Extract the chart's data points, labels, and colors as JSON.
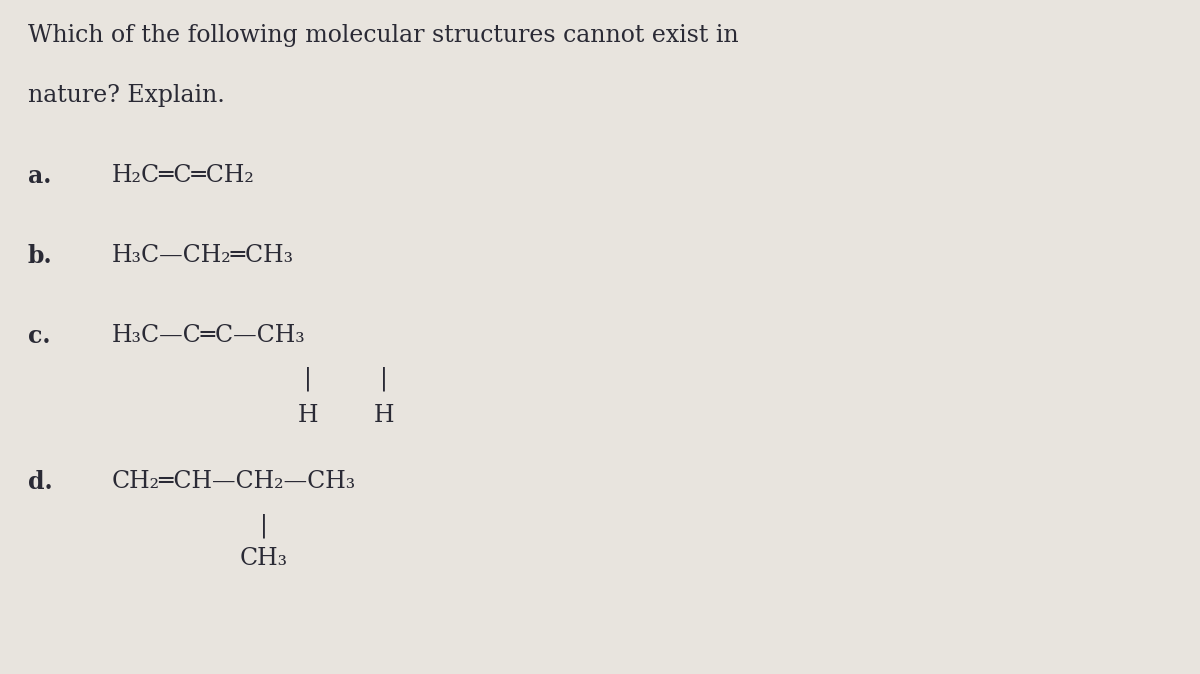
{
  "background_color": "#e8e4de",
  "text_color": "#2a2a35",
  "title_line1": "Which of the following molecular structures cannot exist in",
  "title_line2": "nature? Explain.",
  "title_fontsize": 19,
  "label_fontsize": 19,
  "formula_fontsize": 19,
  "figsize": [
    12.0,
    6.74
  ],
  "dpi": 100,
  "items": [
    {
      "label": "a.",
      "main": "H₂C═C═CH₂",
      "sub_bars": [],
      "sub_atoms": [],
      "branch_bar": null,
      "branch_atom": null
    },
    {
      "label": "b.",
      "main": "H₃C—CH₂═CH₃",
      "sub_bars": [],
      "sub_atoms": [],
      "branch_bar": null,
      "branch_atom": null
    },
    {
      "label": "c.",
      "main": "H₃C—C═C—CH₃",
      "sub_bars": [
        0.37,
        0.51
      ],
      "sub_atoms": [
        "H",
        "H"
      ],
      "branch_bar": null,
      "branch_atom": null
    },
    {
      "label": "d.",
      "main": "CH₂═CH—CH₂—CH₃",
      "sub_bars": [],
      "sub_atoms": [],
      "branch_bar": 0.185,
      "branch_atom": "CH₃"
    }
  ]
}
